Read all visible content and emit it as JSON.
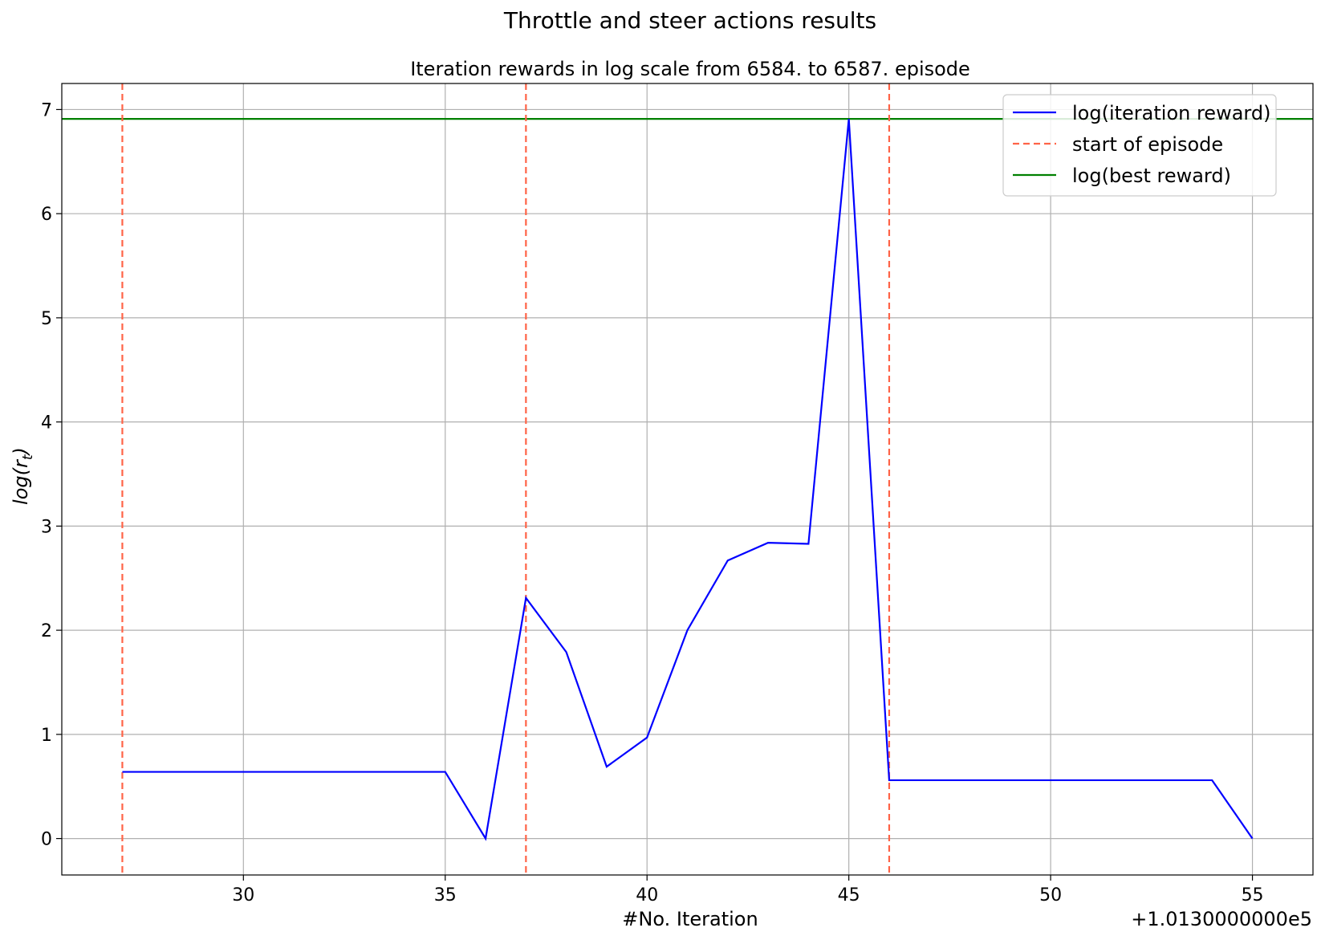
{
  "chart_data": {
    "type": "line",
    "title": "Throttle and steer actions results",
    "subtitle": "Iteration rewards in log scale from 6584. to 6587. episode",
    "xlabel": "#No. Iteration",
    "ylabel": "log(r_t)",
    "x_offset_label": "+1.0130000000e5",
    "xlim": [
      25.5,
      56.5
    ],
    "ylim": [
      -0.35,
      7.25
    ],
    "x_ticks": [
      30,
      35,
      40,
      45,
      50,
      55
    ],
    "y_ticks": [
      0,
      1,
      2,
      3,
      4,
      5,
      6,
      7
    ],
    "grid": true,
    "legend_position": "top-right",
    "series": [
      {
        "name": "log(iteration reward)",
        "color": "#0000ff",
        "style": "solid",
        "x": [
          27,
          28,
          29,
          30,
          31,
          32,
          33,
          34,
          35,
          36,
          37,
          38,
          39,
          40,
          41,
          42,
          43,
          44,
          45,
          46,
          47,
          48,
          49,
          50,
          51,
          52,
          53,
          54,
          55
        ],
        "y": [
          0.64,
          0.64,
          0.64,
          0.64,
          0.64,
          0.64,
          0.64,
          0.64,
          0.64,
          0.0,
          2.31,
          1.79,
          0.69,
          0.97,
          2.0,
          2.67,
          2.84,
          2.83,
          6.91,
          0.56,
          0.56,
          0.56,
          0.56,
          0.56,
          0.56,
          0.56,
          0.56,
          0.56,
          0.0
        ]
      },
      {
        "name": "start of episode",
        "color": "#ff6347",
        "style": "dashed",
        "vlines_x": [
          27,
          37,
          46
        ]
      },
      {
        "name": "log(best reward)",
        "color": "#008000",
        "style": "solid",
        "hline_y": 6.91
      }
    ]
  }
}
